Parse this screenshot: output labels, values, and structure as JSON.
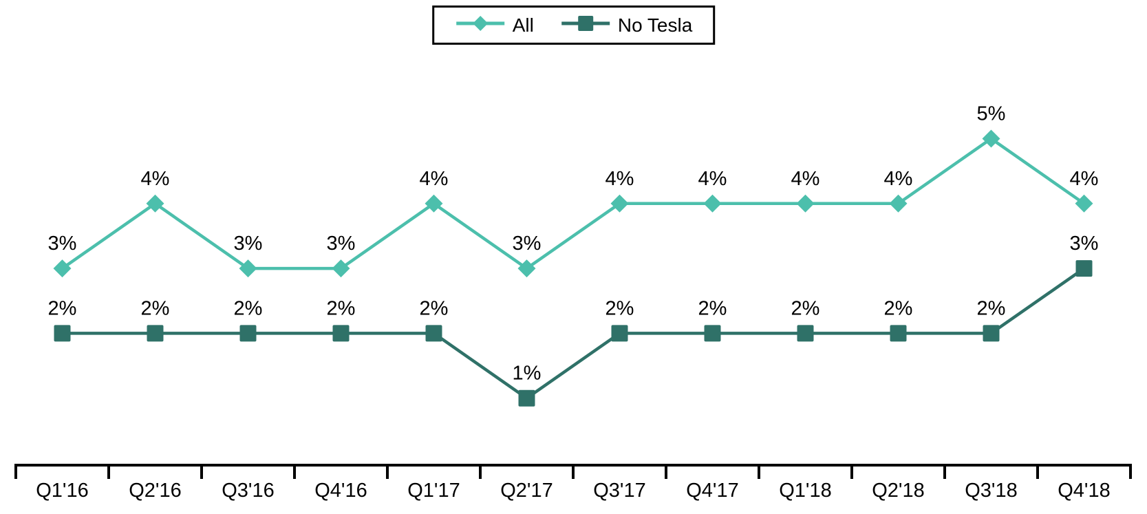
{
  "chart_data": {
    "type": "line",
    "categories": [
      "Q1'16",
      "Q2'16",
      "Q3'16",
      "Q4'16",
      "Q1'17",
      "Q2'17",
      "Q3'17",
      "Q4'17",
      "Q1'18",
      "Q2'18",
      "Q3'18",
      "Q4'18"
    ],
    "series": [
      {
        "name": "All",
        "color": "#4CBFAC",
        "marker": "diamond",
        "values": [
          3,
          4,
          3,
          3,
          4,
          3,
          4,
          4,
          4,
          4,
          5,
          4
        ],
        "labels": [
          "3%",
          "4%",
          "3%",
          "3%",
          "4%",
          "3%",
          "4%",
          "4%",
          "4%",
          "4%",
          "5%",
          "4%"
        ]
      },
      {
        "name": "No Tesla",
        "color": "#2F7168",
        "marker": "square",
        "values": [
          2,
          2,
          2,
          2,
          2,
          1,
          2,
          2,
          2,
          2,
          2,
          3
        ],
        "labels": [
          "2%",
          "2%",
          "2%",
          "2%",
          "2%",
          "1%",
          "2%",
          "2%",
          "2%",
          "2%",
          "2%",
          "3%"
        ]
      }
    ],
    "value_suffix": "%",
    "ylim": [
      0,
      6
    ],
    "grid": false,
    "legend_position": "top-center",
    "legend_border_color": "#000000",
    "axis_color": "#000000",
    "data_label_color": "#000000",
    "tick_label_color": "#000000",
    "background_color": "#ffffff"
  }
}
